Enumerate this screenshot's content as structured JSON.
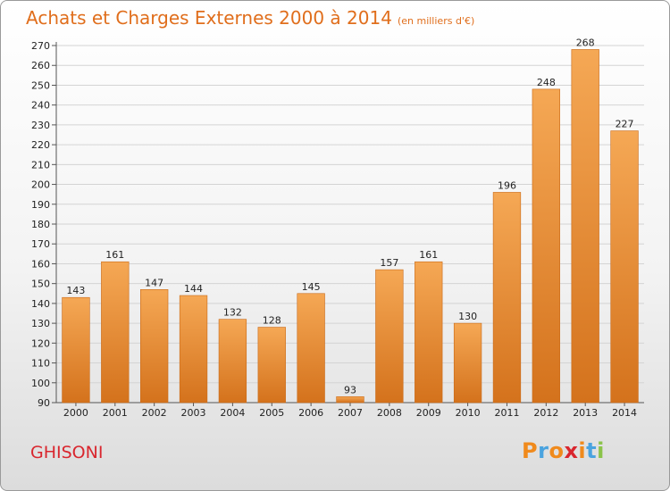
{
  "title": "Achats et Charges Externes 2000 à 2014",
  "unit": "(en milliers d'€)",
  "town": "GHISONI",
  "logo": [
    "P",
    "r",
    "o",
    "x",
    "i",
    "t",
    "i"
  ],
  "colors": {
    "title": "#e06e1c",
    "town": "#d9262e",
    "bar_top": "#f5a855",
    "bar_bottom": "#d4721c",
    "logo": [
      "#f08a1c",
      "#4aa3df",
      "#f08a1c",
      "#d9262e",
      "#f08a1c",
      "#4aa3df",
      "#8bc34a"
    ]
  },
  "chart_data": {
    "type": "bar",
    "title": "Achats et Charges Externes 2000 à 2014",
    "subtitle": "(en milliers d'€)",
    "categories": [
      "2000",
      "2001",
      "2002",
      "2003",
      "2004",
      "2005",
      "2006",
      "2007",
      "2008",
      "2009",
      "2010",
      "2011",
      "2012",
      "2013",
      "2014"
    ],
    "values": [
      143,
      161,
      147,
      144,
      132,
      128,
      145,
      93,
      157,
      161,
      130,
      196,
      248,
      268,
      227
    ],
    "ylim": [
      90,
      270
    ],
    "yticks": [
      90,
      100,
      110,
      120,
      130,
      140,
      150,
      160,
      170,
      180,
      190,
      200,
      210,
      220,
      230,
      240,
      250,
      260,
      270
    ],
    "grid": true,
    "xlabel": "",
    "ylabel": ""
  }
}
